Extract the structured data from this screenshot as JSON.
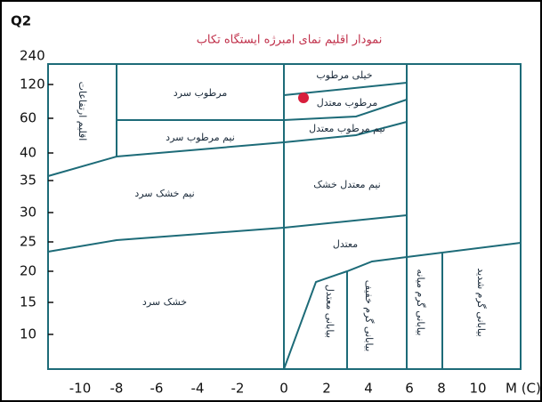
{
  "title": "نمودار اقلیم نمای امبرژه ایستگاه تکاب",
  "y_axis_label": "Q2",
  "x_axis_label": "M (C)",
  "y_ticks": [
    240,
    120,
    60,
    40,
    35,
    30,
    25,
    20,
    15,
    10
  ],
  "x_ticks": [
    -10,
    -8,
    -6,
    -4,
    -2,
    0,
    2,
    4,
    6,
    8,
    10
  ],
  "regions": [
    "اقلیم ارتفاعات",
    "مرطوب سرد",
    "نیم مرطوب سرد",
    "خیلی مرطوب",
    "مرطوب معتدل",
    "نیم مرطوب معتدل",
    "نیم خشک سرد",
    "نیم معتدل خشک",
    "معتدل",
    "خشک سرد",
    "بیابانی معتدل",
    "بیابانی گرم خفیف",
    "بیابانی گرم میانه",
    "بیابانی گرم شدید"
  ]
}
